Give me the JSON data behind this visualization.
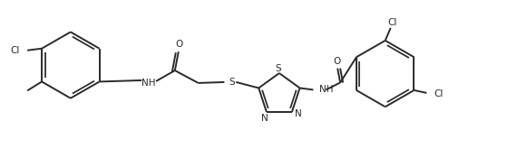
{
  "bg_color": "#ffffff",
  "line_color": "#2a2a2a",
  "line_width": 1.4,
  "figsize": [
    5.81,
    1.65
  ],
  "dpi": 100,
  "xlim": [
    0,
    581
  ],
  "ylim": [
    0,
    165
  ]
}
